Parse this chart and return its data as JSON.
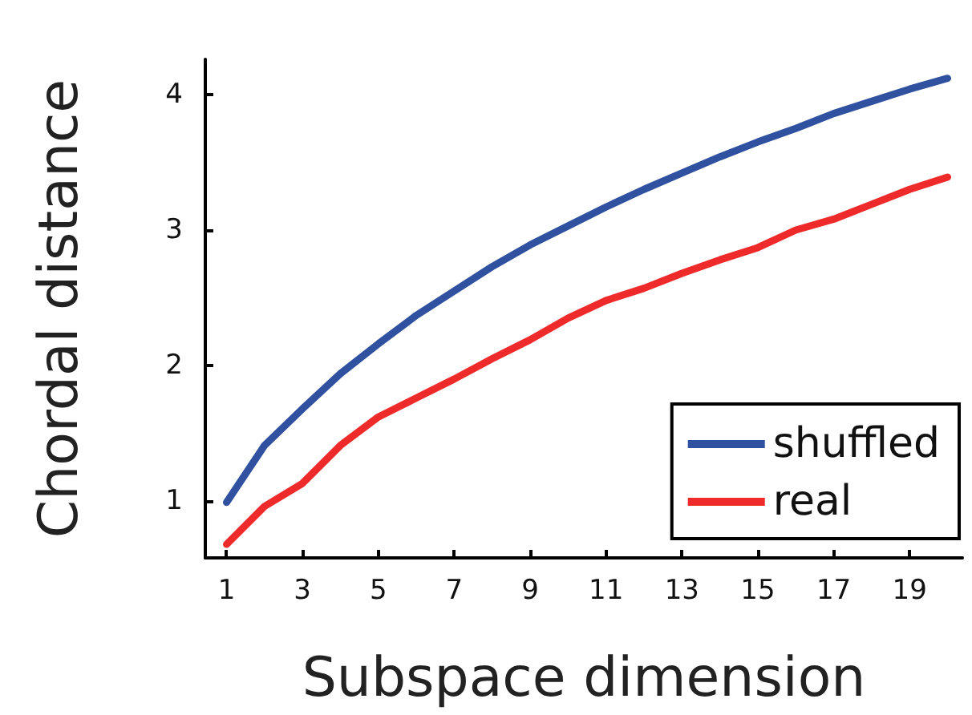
{
  "chart_data": {
    "type": "line",
    "xlabel": "Subspace dimension",
    "ylabel": "Chordal distance",
    "x": [
      1,
      2,
      3,
      4,
      5,
      6,
      7,
      8,
      9,
      10,
      11,
      12,
      13,
      14,
      15,
      16,
      17,
      18,
      19,
      20
    ],
    "series": [
      {
        "name": "shuffled",
        "color": "#3050a0",
        "values": [
          0.99,
          1.41,
          1.68,
          1.94,
          2.16,
          2.37,
          2.55,
          2.73,
          2.89,
          3.03,
          3.17,
          3.3,
          3.42,
          3.54,
          3.65,
          3.75,
          3.86,
          3.95,
          4.04,
          4.12
        ]
      },
      {
        "name": "real",
        "color": "#ee2a2a",
        "values": [
          0.68,
          0.96,
          1.13,
          1.41,
          1.62,
          1.76,
          1.9,
          2.05,
          2.19,
          2.35,
          2.48,
          2.57,
          2.68,
          2.78,
          2.87,
          3.0,
          3.08,
          3.19,
          3.3,
          3.39
        ]
      }
    ],
    "xlim": [
      0.44,
      20.39
    ],
    "ylim": [
      0.58,
      4.26
    ],
    "xticks": [
      1,
      3,
      5,
      7,
      9,
      11,
      13,
      15,
      17,
      19
    ],
    "yticks": [
      1,
      2,
      3,
      4
    ],
    "grid": false,
    "legend": "bottom right",
    "marker": "none",
    "line_style": "solid"
  }
}
